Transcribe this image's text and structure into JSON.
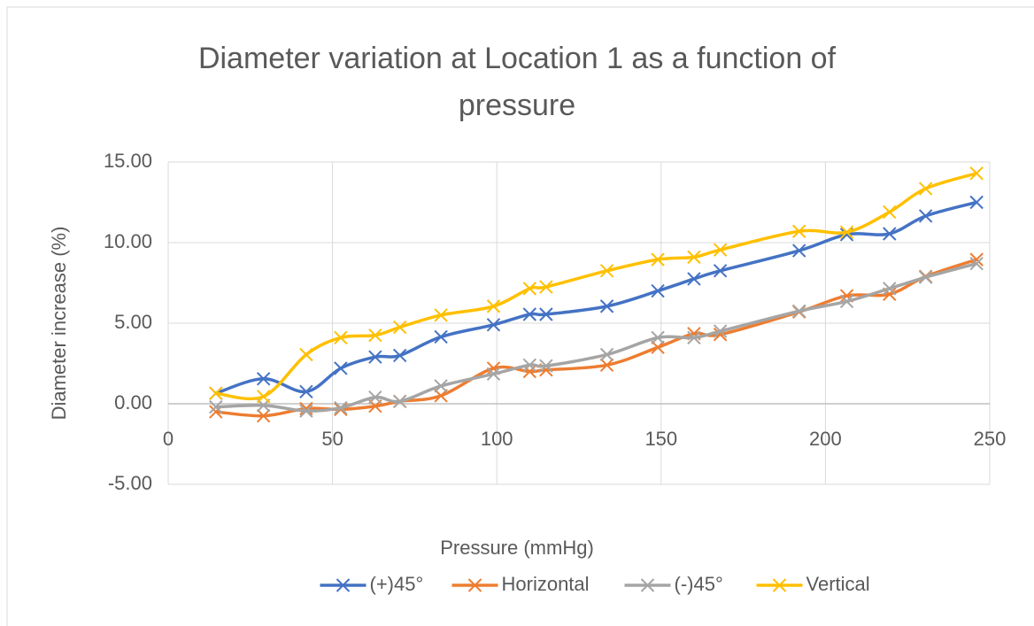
{
  "chart_data": {
    "type": "scatter-smooth",
    "title": "Diameter variation at Location 1 as a function of pressure",
    "x_label": "Pressure (mmHg)",
    "y_label": "Diameter increase (%)",
    "x": [
      14.5,
      29,
      42,
      52.5,
      63,
      70.5,
      83,
      99,
      110,
      115,
      133.5,
      149,
      160,
      168,
      192,
      206.5,
      219.5,
      230.5,
      246
    ],
    "series": [
      {
        "name": "(+)45°",
        "color": "#4472c4",
        "values": [
          0.65,
          1.55,
          0.75,
          2.2,
          2.9,
          3.0,
          4.15,
          4.9,
          5.55,
          5.55,
          6.05,
          7.0,
          7.75,
          8.25,
          9.5,
          10.5,
          10.55,
          11.65,
          12.5
        ]
      },
      {
        "name": "Horizontal",
        "color": "#ed7d31",
        "values": [
          -0.5,
          -0.75,
          -0.3,
          -0.35,
          -0.15,
          0.15,
          0.5,
          2.2,
          2.0,
          2.1,
          2.4,
          3.5,
          4.35,
          4.3,
          5.7,
          6.7,
          6.8,
          7.9,
          8.95
        ]
      },
      {
        "name": "(-)45°",
        "color": "#a5a5a5",
        "values": [
          -0.2,
          -0.1,
          -0.45,
          -0.25,
          0.4,
          0.15,
          1.1,
          1.85,
          2.4,
          2.35,
          3.05,
          4.1,
          4.1,
          4.5,
          5.75,
          6.35,
          7.15,
          7.85,
          8.7
        ]
      },
      {
        "name": "Vertical",
        "color": "#ffc000",
        "values": [
          0.65,
          0.45,
          3.05,
          4.1,
          4.25,
          4.75,
          5.5,
          6.05,
          7.15,
          7.25,
          8.25,
          8.95,
          9.1,
          9.55,
          10.7,
          10.65,
          11.9,
          13.35,
          14.3
        ]
      }
    ],
    "xlim": [
      0,
      250
    ],
    "xticks": [
      0,
      50,
      100,
      150,
      200,
      250
    ],
    "ylim": [
      -5,
      15
    ],
    "yticks": [
      {
        "value": -5,
        "label": "-5.00"
      },
      {
        "value": 0,
        "label": "0.00"
      },
      {
        "value": 5,
        "label": "5.00"
      },
      {
        "value": 10,
        "label": "10.00"
      },
      {
        "value": 15,
        "label": "15.00"
      }
    ],
    "grid": true,
    "legend": "bottom"
  }
}
